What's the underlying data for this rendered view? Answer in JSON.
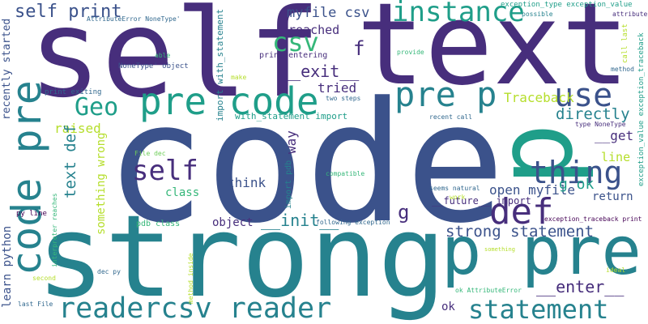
{
  "colors": {
    "indigo": "#472e7c",
    "blue": "#3b528b",
    "slate": "#31688e",
    "teal": "#26828e",
    "green": "#1f9e89",
    "mint": "#35b779",
    "lime": "#6ece58",
    "yellow": "#b5de2b",
    "purple": "#440154"
  },
  "words": [
    {
      "text": "text",
      "color": "indigo"
    },
    {
      "text": "self",
      "color": "indigo"
    },
    {
      "text": "code",
      "color": "blue"
    },
    {
      "text": "strong",
      "color": "teal"
    },
    {
      "text": "p",
      "color": "green"
    },
    {
      "text": "p pre",
      "color": "teal"
    },
    {
      "text": "readercsv reader",
      "color": "teal"
    },
    {
      "text": "statement",
      "color": "teal"
    },
    {
      "text": "code pre",
      "color": "teal"
    },
    {
      "text": "self print",
      "color": "blue"
    },
    {
      "text": "instance",
      "color": "green"
    },
    {
      "text": "csv",
      "color": "mint"
    },
    {
      "text": "myfile csv",
      "color": "blue"
    },
    {
      "text": "pre code",
      "color": "green"
    },
    {
      "text": "pre p",
      "color": "teal"
    },
    {
      "text": "use",
      "color": "blue"
    },
    {
      "text": "Geo",
      "color": "green"
    },
    {
      "text": "self",
      "color": "indigo"
    },
    {
      "text": "thing",
      "color": "blue"
    },
    {
      "text": "def",
      "color": "indigo"
    },
    {
      "text": "strong statement",
      "color": "blue"
    },
    {
      "text": "reached",
      "color": "indigo"
    },
    {
      "text": "f",
      "color": "indigo"
    },
    {
      "text": "__exit__",
      "color": "indigo"
    },
    {
      "text": "tried",
      "color": "indigo"
    },
    {
      "text": "way",
      "color": "indigo"
    },
    {
      "text": "directly",
      "color": "teal"
    },
    {
      "text": "Traceback",
      "color": "yellow"
    },
    {
      "text": "__get",
      "color": "indigo"
    },
    {
      "text": "raised",
      "color": "yellow"
    },
    {
      "text": "text def",
      "color": "teal"
    },
    {
      "text": "think",
      "color": "blue"
    },
    {
      "text": "class",
      "color": "mint"
    },
    {
      "text": "open myfile",
      "color": "blue"
    },
    {
      "text": "g ok",
      "color": "green"
    },
    {
      "text": "line",
      "color": "yellow"
    },
    {
      "text": "return",
      "color": "blue"
    },
    {
      "text": "g",
      "color": "indigo"
    },
    {
      "text": "object",
      "color": "indigo"
    },
    {
      "text": "__init__",
      "color": "teal"
    },
    {
      "text": "__future__ import",
      "color": "indigo"
    },
    {
      "text": "__enter__",
      "color": "indigo"
    },
    {
      "text": "something wrong",
      "color": "yellow"
    },
    {
      "text": "learn python",
      "color": "blue"
    },
    {
      "text": "recently started",
      "color": "blue"
    },
    {
      "text": "ok",
      "color": "indigo"
    },
    {
      "text": "with_statement import",
      "color": "green"
    },
    {
      "text": "import with_statement",
      "color": "teal"
    },
    {
      "text": "print entering",
      "color": "indigo"
    },
    {
      "text": "import pdb",
      "color": "teal"
    },
    {
      "text": "AttributeError NoneType'",
      "color": "slate"
    },
    {
      "text": "NoneType' object",
      "color": "blue"
    },
    {
      "text": "able",
      "color": "mint"
    },
    {
      "text": "print exiting",
      "color": "slate"
    },
    {
      "text": "pdb class",
      "color": "mint"
    },
    {
      "text": "File dec",
      "color": "lime"
    },
    {
      "text": "exception_type exception_value",
      "color": "green"
    },
    {
      "text": "possible",
      "color": "teal"
    },
    {
      "text": "attribute ok'",
      "color": "indigo"
    },
    {
      "text": "provide",
      "color": "mint"
    },
    {
      "text": "call last",
      "color": "yellow"
    },
    {
      "text": "method",
      "color": "slate"
    },
    {
      "text": "exception_value exception_traceback",
      "color": "green"
    },
    {
      "text": "two steps",
      "color": "slate"
    },
    {
      "text": "recent call",
      "color": "slate"
    },
    {
      "text": "type NoneType",
      "color": "indigo"
    },
    {
      "text": "compatible",
      "color": "mint"
    },
    {
      "text": "seems natural",
      "color": "slate"
    },
    {
      "text": "work",
      "color": "yellow"
    },
    {
      "text": "following exception",
      "color": "slate"
    },
    {
      "text": "exception_traceback print",
      "color": "purple"
    },
    {
      "text": "something",
      "color": "yellow"
    },
    {
      "text": "ideal",
      "color": "yellow"
    },
    {
      "text": "ok AttributeError",
      "color": "mint"
    },
    {
      "text": "dec py",
      "color": "slate"
    },
    {
      "text": "method inside",
      "color": "yellow"
    },
    {
      "text": "second",
      "color": "yellow"
    },
    {
      "text": "last File",
      "color": "slate"
    },
    {
      "text": "py line",
      "color": "purple"
    },
    {
      "text": "interpreter reaches",
      "color": "mint"
    },
    {
      "text": "make",
      "color": "yellow"
    }
  ]
}
